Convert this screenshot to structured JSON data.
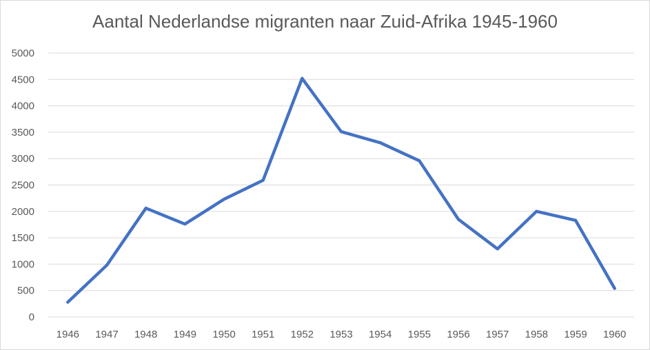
{
  "chart_data": {
    "type": "line",
    "title": "Aantal Nederlandse migranten naar Zuid-Afrika 1945-1960",
    "xlabel": "",
    "ylabel": "",
    "categories": [
      "1946",
      "1947",
      "1948",
      "1949",
      "1950",
      "1951",
      "1952",
      "1953",
      "1954",
      "1955",
      "1956",
      "1957",
      "1958",
      "1959",
      "1960"
    ],
    "series": [
      {
        "values": [
          280,
          980,
          2060,
          1760,
          2230,
          2590,
          4520,
          3510,
          3300,
          2960,
          1850,
          1290,
          2000,
          1830,
          540
        ]
      }
    ],
    "ylim": [
      0,
      5000
    ],
    "yticks": [
      "0",
      "500",
      "1000",
      "1500",
      "2000",
      "2500",
      "3000",
      "3500",
      "4000",
      "4500",
      "5000"
    ],
    "grid": true,
    "legend": "none",
    "line_color": "#4472c4",
    "grid_color": "#d9d9d9",
    "text_color": "#595959"
  }
}
